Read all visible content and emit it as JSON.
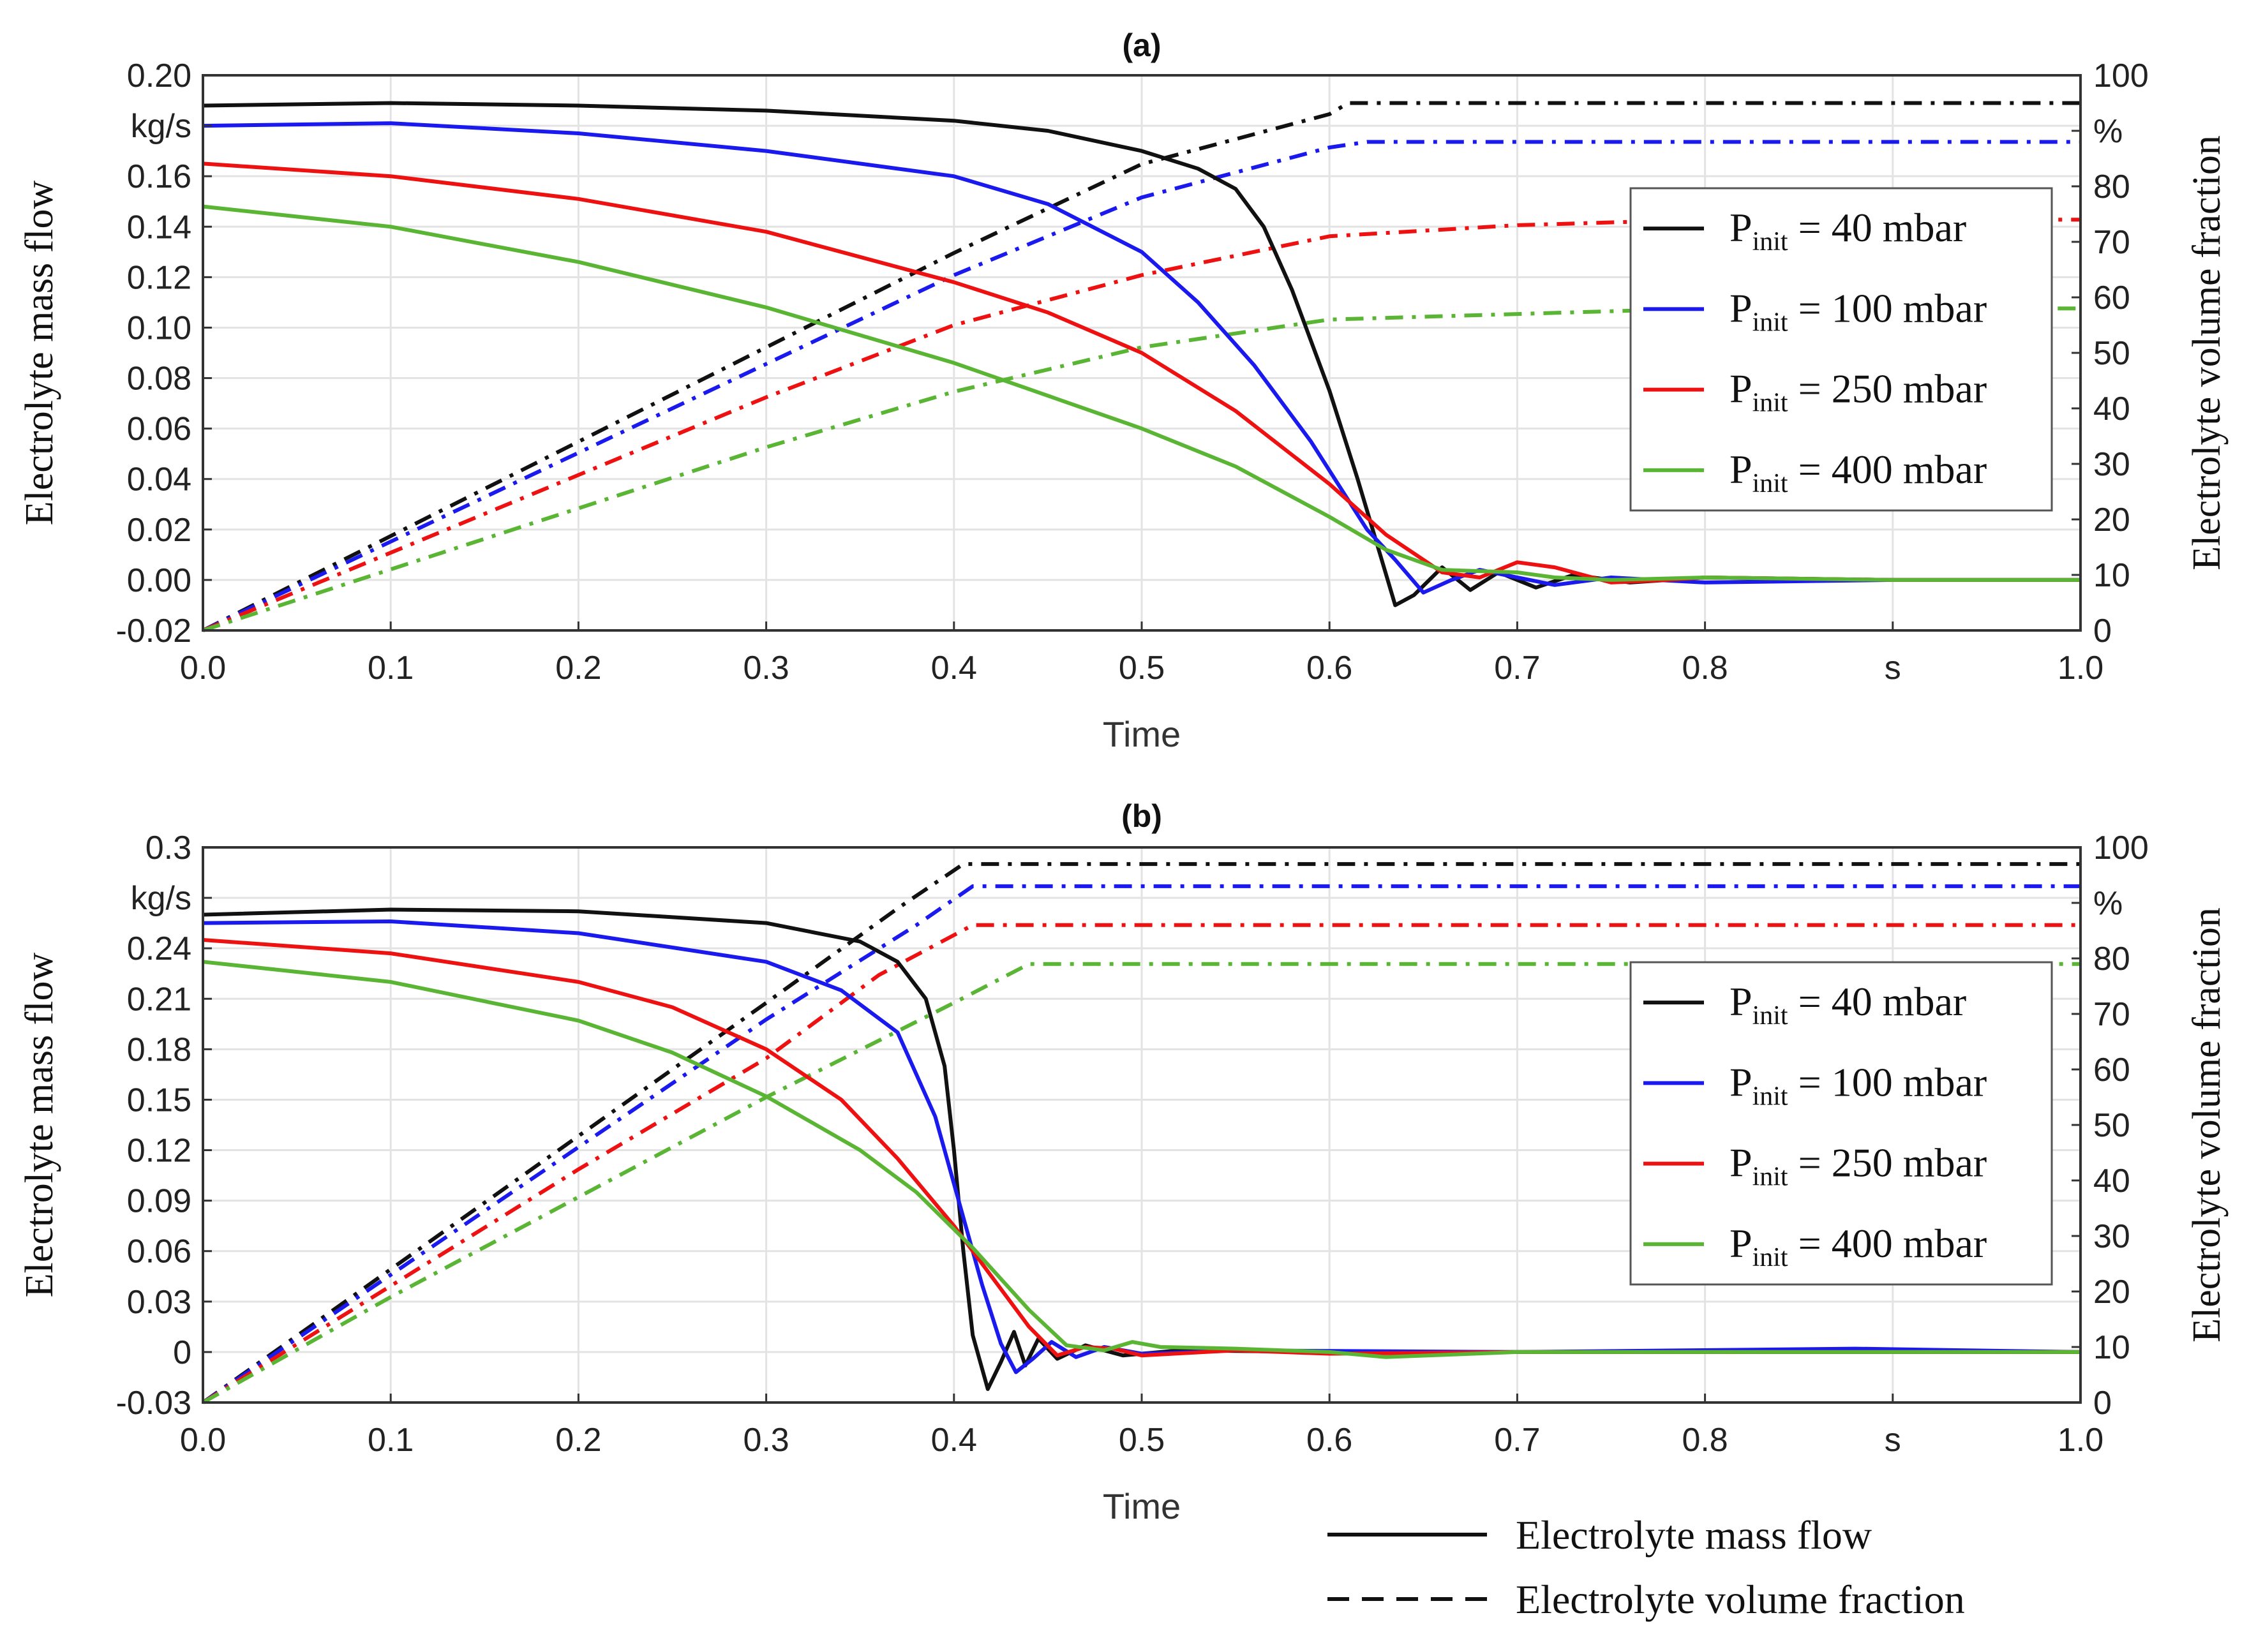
{
  "chart_data": [
    {
      "type": "line",
      "title": "(a)",
      "xlabel": "Time",
      "x_unit": "s",
      "ylabel_left": "Electrolyte  mass flow",
      "y_unit_left": "kg/s",
      "ylabel_right": "Electrolyte  volume  fraction",
      "y_unit_right": "%",
      "xlim": [
        0,
        1
      ],
      "ylim_left": [
        -0.02,
        0.2
      ],
      "ylim_right": [
        0,
        100
      ],
      "x_ticks": [
        "0.0",
        "0.1",
        "0.2",
        "0.3",
        "0.4",
        "0.5",
        "0.6",
        "0.7",
        "0.8",
        "s",
        "1.0"
      ],
      "y_left_ticks": [
        "-0.02",
        "0.00",
        "0.02",
        "0.04",
        "0.06",
        "0.08",
        "0.10",
        "0.12",
        "0.14",
        "0.16",
        "kg/s",
        "0.20"
      ],
      "y_right_ticks": [
        "0",
        "10",
        "20",
        "30",
        "40",
        "50",
        "60",
        "70",
        "80",
        "%",
        "100"
      ],
      "grid": true,
      "legend_position": "right",
      "series": [
        {
          "name_main": "P",
          "name_sub": "init",
          "name_rest": " = 40 mbar",
          "color": "#111111",
          "mass_flow": [
            [
              0,
              0.188
            ],
            [
              0.1,
              0.189
            ],
            [
              0.2,
              0.188
            ],
            [
              0.3,
              0.186
            ],
            [
              0.4,
              0.182
            ],
            [
              0.45,
              0.178
            ],
            [
              0.5,
              0.17
            ],
            [
              0.53,
              0.163
            ],
            [
              0.55,
              0.155
            ],
            [
              0.565,
              0.14
            ],
            [
              0.58,
              0.115
            ],
            [
              0.6,
              0.075
            ],
            [
              0.615,
              0.04
            ],
            [
              0.625,
              0.015
            ],
            [
              0.635,
              -0.01
            ],
            [
              0.645,
              -0.006
            ],
            [
              0.66,
              0.005
            ],
            [
              0.675,
              -0.004
            ],
            [
              0.69,
              0.003
            ],
            [
              0.71,
              -0.003
            ],
            [
              0.73,
              0.002
            ],
            [
              0.76,
              -0.001
            ],
            [
              0.8,
              0.001
            ],
            [
              0.9,
              0.0
            ],
            [
              1.0,
              0.0
            ]
          ],
          "volume_fraction": [
            [
              0,
              0
            ],
            [
              0.1,
              17
            ],
            [
              0.2,
              34
            ],
            [
              0.3,
              51
            ],
            [
              0.4,
              68
            ],
            [
              0.5,
              84
            ],
            [
              0.6,
              93
            ],
            [
              0.61,
              95
            ],
            [
              1.0,
              95
            ]
          ]
        },
        {
          "name_main": "P",
          "name_sub": "init",
          "name_rest": " = 100 mbar",
          "color": "#1a1aee",
          "mass_flow": [
            [
              0,
              0.18
            ],
            [
              0.1,
              0.181
            ],
            [
              0.2,
              0.177
            ],
            [
              0.3,
              0.17
            ],
            [
              0.4,
              0.16
            ],
            [
              0.45,
              0.149
            ],
            [
              0.5,
              0.13
            ],
            [
              0.53,
              0.11
            ],
            [
              0.56,
              0.085
            ],
            [
              0.59,
              0.055
            ],
            [
              0.62,
              0.02
            ],
            [
              0.635,
              0.008
            ],
            [
              0.65,
              -0.005
            ],
            [
              0.665,
              0.0
            ],
            [
              0.68,
              0.004
            ],
            [
              0.7,
              0.001
            ],
            [
              0.72,
              -0.002
            ],
            [
              0.75,
              0.001
            ],
            [
              0.8,
              -0.001
            ],
            [
              0.9,
              0.0
            ],
            [
              1.0,
              0.0
            ]
          ],
          "volume_fraction": [
            [
              0,
              0
            ],
            [
              0.1,
              16
            ],
            [
              0.2,
              32
            ],
            [
              0.3,
              48
            ],
            [
              0.4,
              64
            ],
            [
              0.5,
              78
            ],
            [
              0.6,
              87
            ],
            [
              0.62,
              88
            ],
            [
              1.0,
              88
            ]
          ]
        },
        {
          "name_main": "P",
          "name_sub": "init",
          "name_rest": " = 250 mbar",
          "color": "#ee1111",
          "mass_flow": [
            [
              0,
              0.165
            ],
            [
              0.1,
              0.16
            ],
            [
              0.2,
              0.151
            ],
            [
              0.3,
              0.138
            ],
            [
              0.4,
              0.118
            ],
            [
              0.45,
              0.106
            ],
            [
              0.5,
              0.09
            ],
            [
              0.55,
              0.067
            ],
            [
              0.6,
              0.038
            ],
            [
              0.63,
              0.018
            ],
            [
              0.66,
              0.003
            ],
            [
              0.68,
              0.001
            ],
            [
              0.7,
              0.007
            ],
            [
              0.72,
              0.005
            ],
            [
              0.75,
              -0.001
            ],
            [
              0.78,
              0.0
            ],
            [
              0.8,
              0.001
            ],
            [
              0.9,
              0.0
            ],
            [
              1.0,
              0.0
            ]
          ],
          "volume_fraction": [
            [
              0,
              0
            ],
            [
              0.1,
              14
            ],
            [
              0.2,
              28
            ],
            [
              0.3,
              42
            ],
            [
              0.4,
              55
            ],
            [
              0.5,
              64
            ],
            [
              0.6,
              71
            ],
            [
              0.7,
              73
            ],
            [
              0.8,
              74
            ],
            [
              1.0,
              74
            ]
          ]
        },
        {
          "name_main": "P",
          "name_sub": "init",
          "name_rest": " = 400 mbar",
          "color": "#5ab534",
          "mass_flow": [
            [
              0,
              0.148
            ],
            [
              0.1,
              0.14
            ],
            [
              0.2,
              0.126
            ],
            [
              0.3,
              0.108
            ],
            [
              0.4,
              0.086
            ],
            [
              0.5,
              0.06
            ],
            [
              0.55,
              0.045
            ],
            [
              0.6,
              0.025
            ],
            [
              0.63,
              0.012
            ],
            [
              0.66,
              0.004
            ],
            [
              0.7,
              0.003
            ],
            [
              0.72,
              0.001
            ],
            [
              0.75,
              0.0
            ],
            [
              0.8,
              0.001
            ],
            [
              0.9,
              0.0
            ],
            [
              1.0,
              0.0
            ]
          ],
          "volume_fraction": [
            [
              0,
              0
            ],
            [
              0.1,
              11
            ],
            [
              0.2,
              22
            ],
            [
              0.3,
              33
            ],
            [
              0.4,
              43
            ],
            [
              0.5,
              51
            ],
            [
              0.6,
              56
            ],
            [
              0.7,
              57
            ],
            [
              0.8,
              58
            ],
            [
              1.0,
              58
            ]
          ]
        }
      ]
    },
    {
      "type": "line",
      "title": "(b)",
      "xlabel": "Time",
      "x_unit": "s",
      "ylabel_left": "Electrolyte  mass flow",
      "y_unit_left": "kg/s",
      "ylabel_right": "Electrolyte  volume  fraction",
      "y_unit_right": "%",
      "xlim": [
        0,
        1
      ],
      "ylim_left": [
        -0.03,
        0.3
      ],
      "ylim_right": [
        0,
        100
      ],
      "x_ticks": [
        "0.0",
        "0.1",
        "0.2",
        "0.3",
        "0.4",
        "0.5",
        "0.6",
        "0.7",
        "0.8",
        "s",
        "1.0"
      ],
      "y_left_ticks": [
        "-0.03",
        "0",
        "0.03",
        "0.06",
        "0.09",
        "0.12",
        "0.15",
        "0.18",
        "0.21",
        "0.24",
        "kg/s",
        "0.3"
      ],
      "y_right_ticks": [
        "0",
        "10",
        "20",
        "30",
        "40",
        "50",
        "60",
        "70",
        "80",
        "%",
        "100"
      ],
      "grid": true,
      "legend_position": "right",
      "series": [
        {
          "name_main": "P",
          "name_sub": "init",
          "name_rest": " = 40 mbar",
          "color": "#111111",
          "mass_flow": [
            [
              0,
              0.26
            ],
            [
              0.1,
              0.263
            ],
            [
              0.2,
              0.262
            ],
            [
              0.3,
              0.255
            ],
            [
              0.35,
              0.244
            ],
            [
              0.37,
              0.232
            ],
            [
              0.385,
              0.21
            ],
            [
              0.395,
              0.17
            ],
            [
              0.4,
              0.12
            ],
            [
              0.405,
              0.06
            ],
            [
              0.41,
              0.01
            ],
            [
              0.418,
              -0.022
            ],
            [
              0.425,
              -0.006
            ],
            [
              0.432,
              0.012
            ],
            [
              0.438,
              -0.008
            ],
            [
              0.445,
              0.008
            ],
            [
              0.455,
              -0.004
            ],
            [
              0.47,
              0.004
            ],
            [
              0.49,
              -0.002
            ],
            [
              0.52,
              0.001
            ],
            [
              0.6,
              0.0
            ],
            [
              1.0,
              0.0
            ]
          ],
          "volume_fraction": [
            [
              0,
              0
            ],
            [
              0.1,
              24
            ],
            [
              0.2,
              48
            ],
            [
              0.3,
              72
            ],
            [
              0.37,
              89
            ],
            [
              0.405,
              97
            ],
            [
              1.0,
              97
            ]
          ]
        },
        {
          "name_main": "P",
          "name_sub": "init",
          "name_rest": " = 100 mbar",
          "color": "#1a1aee",
          "mass_flow": [
            [
              0,
              0.255
            ],
            [
              0.1,
              0.256
            ],
            [
              0.2,
              0.249
            ],
            [
              0.3,
              0.232
            ],
            [
              0.34,
              0.215
            ],
            [
              0.37,
              0.19
            ],
            [
              0.39,
              0.14
            ],
            [
              0.405,
              0.08
            ],
            [
              0.415,
              0.04
            ],
            [
              0.425,
              0.005
            ],
            [
              0.433,
              -0.012
            ],
            [
              0.442,
              -0.004
            ],
            [
              0.452,
              0.006
            ],
            [
              0.465,
              -0.003
            ],
            [
              0.48,
              0.003
            ],
            [
              0.5,
              -0.001
            ],
            [
              0.55,
              0.001
            ],
            [
              0.7,
              0.0
            ],
            [
              0.88,
              0.002
            ],
            [
              1.0,
              0.0
            ]
          ],
          "volume_fraction": [
            [
              0,
              0
            ],
            [
              0.1,
              23
            ],
            [
              0.2,
              46
            ],
            [
              0.3,
              69
            ],
            [
              0.38,
              86
            ],
            [
              0.41,
              93
            ],
            [
              1.0,
              93
            ]
          ]
        },
        {
          "name_main": "P",
          "name_sub": "init",
          "name_rest": " = 250 mbar",
          "color": "#ee1111",
          "mass_flow": [
            [
              0,
              0.245
            ],
            [
              0.1,
              0.237
            ],
            [
              0.2,
              0.22
            ],
            [
              0.25,
              0.205
            ],
            [
              0.3,
              0.18
            ],
            [
              0.34,
              0.15
            ],
            [
              0.37,
              0.115
            ],
            [
              0.4,
              0.075
            ],
            [
              0.42,
              0.045
            ],
            [
              0.44,
              0.015
            ],
            [
              0.455,
              -0.002
            ],
            [
              0.47,
              0.003
            ],
            [
              0.485,
              0.002
            ],
            [
              0.5,
              -0.002
            ],
            [
              0.55,
              0.001
            ],
            [
              0.6,
              -0.001
            ],
            [
              0.7,
              0.0
            ],
            [
              1.0,
              0.0
            ]
          ],
          "volume_fraction": [
            [
              0,
              0
            ],
            [
              0.1,
              21
            ],
            [
              0.2,
              42
            ],
            [
              0.3,
              62
            ],
            [
              0.36,
              77
            ],
            [
              0.41,
              86
            ],
            [
              1.0,
              86
            ]
          ]
        },
        {
          "name_main": "P",
          "name_sub": "init",
          "name_rest": " = 400 mbar",
          "color": "#5ab534",
          "mass_flow": [
            [
              0,
              0.232
            ],
            [
              0.1,
              0.22
            ],
            [
              0.2,
              0.197
            ],
            [
              0.25,
              0.178
            ],
            [
              0.3,
              0.152
            ],
            [
              0.35,
              0.12
            ],
            [
              0.38,
              0.095
            ],
            [
              0.41,
              0.062
            ],
            [
              0.44,
              0.025
            ],
            [
              0.46,
              0.004
            ],
            [
              0.48,
              0.001
            ],
            [
              0.495,
              0.006
            ],
            [
              0.51,
              0.003
            ],
            [
              0.55,
              0.002
            ],
            [
              0.6,
              0.0
            ],
            [
              0.63,
              -0.003
            ],
            [
              0.7,
              0.0
            ],
            [
              1.0,
              0.0
            ]
          ],
          "volume_fraction": [
            [
              0,
              0
            ],
            [
              0.1,
              19
            ],
            [
              0.2,
              37
            ],
            [
              0.3,
              55
            ],
            [
              0.4,
              72
            ],
            [
              0.44,
              79
            ],
            [
              1.0,
              79
            ]
          ]
        }
      ]
    }
  ],
  "bottom_legend": {
    "solid_label": "Electrolyte  mass flow",
    "dashed_label": "Electrolyte  volume  fraction"
  }
}
